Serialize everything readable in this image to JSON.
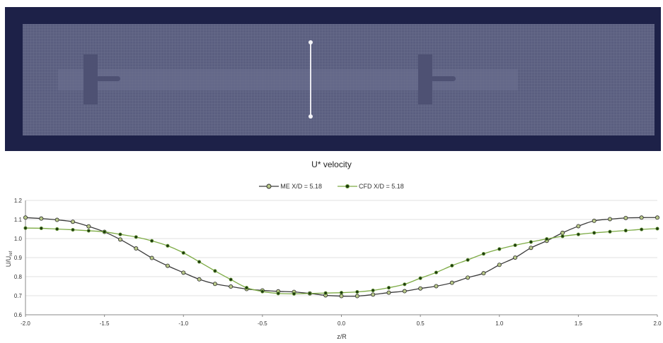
{
  "mesh_view": {
    "background_color": "#1d2148",
    "domain_color": "#5b5f80",
    "turbine_color": "#4e5173",
    "probe_line_color": "#e8e8ee"
  },
  "chart_data": {
    "type": "line",
    "title": "U* velocity",
    "xlabel": "z/R",
    "ylabel": "U/U_ref",
    "ylabel_main": "U/U",
    "ylabel_sub": "ref",
    "xlim": [
      -2.0,
      2.0
    ],
    "ylim": [
      0.6,
      1.2
    ],
    "xticks": [
      -2.0,
      -1.5,
      -1.0,
      -0.5,
      0.0,
      0.5,
      1.0,
      1.5,
      2.0
    ],
    "xtick_labels": [
      "-2.0",
      "-1.5",
      "-1.0",
      "-0.5",
      "0.0",
      "0.5",
      "1.0",
      "1.5",
      "2.0"
    ],
    "yticks": [
      0.6,
      0.7,
      0.8,
      0.9,
      1.0,
      1.1,
      1.2
    ],
    "ytick_labels": [
      "0.6",
      "0.7",
      "0.8",
      "0.9",
      "1.0",
      "1.1",
      "1.2"
    ],
    "grid": "horizontal",
    "legend_position": "top-center",
    "x": [
      -2.0,
      -1.9,
      -1.8,
      -1.7,
      -1.6,
      -1.5,
      -1.4,
      -1.3,
      -1.2,
      -1.1,
      -1.0,
      -0.9,
      -0.8,
      -0.7,
      -0.6,
      -0.5,
      -0.4,
      -0.3,
      -0.2,
      -0.1,
      0.0,
      0.1,
      0.2,
      0.3,
      0.4,
      0.5,
      0.6,
      0.7,
      0.8,
      0.9,
      1.0,
      1.1,
      1.2,
      1.3,
      1.4,
      1.5,
      1.6,
      1.7,
      1.8,
      1.9,
      2.0
    ],
    "series": [
      {
        "name": "ME X/D = 5.18",
        "line_color": "#3a3a3a",
        "marker_fill": "#b9c98a",
        "marker_stroke": "#2b2b2b",
        "values": [
          1.11,
          1.105,
          1.098,
          1.088,
          1.064,
          1.035,
          0.995,
          0.948,
          0.898,
          0.857,
          0.821,
          0.786,
          0.762,
          0.748,
          0.735,
          0.728,
          0.723,
          0.72,
          0.712,
          0.702,
          0.698,
          0.698,
          0.706,
          0.716,
          0.724,
          0.738,
          0.75,
          0.768,
          0.795,
          0.818,
          0.862,
          0.9,
          0.951,
          0.988,
          1.03,
          1.065,
          1.093,
          1.102,
          1.108,
          1.11,
          1.11
        ]
      },
      {
        "name": "CFD X/D = 5.18",
        "line_color": "#7dab45",
        "marker_fill": "#1e3b0f",
        "marker_stroke": "#6f9f3e",
        "values": [
          1.055,
          1.054,
          1.05,
          1.046,
          1.041,
          1.035,
          1.022,
          1.008,
          0.988,
          0.962,
          0.925,
          0.878,
          0.83,
          0.785,
          0.742,
          0.722,
          0.712,
          0.71,
          0.712,
          0.714,
          0.716,
          0.72,
          0.728,
          0.742,
          0.76,
          0.792,
          0.822,
          0.858,
          0.888,
          0.92,
          0.945,
          0.965,
          0.982,
          0.998,
          1.012,
          1.022,
          1.03,
          1.036,
          1.042,
          1.048,
          1.052
        ]
      }
    ]
  }
}
